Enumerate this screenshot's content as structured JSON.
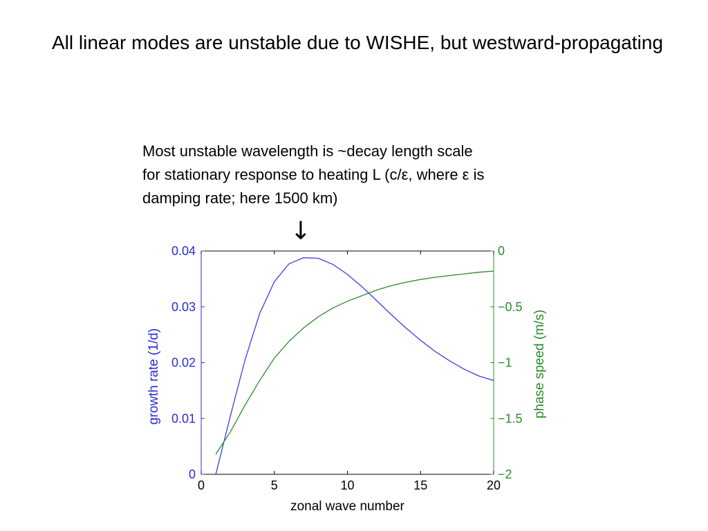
{
  "slide": {
    "title": "All linear modes are unstable due to WISHE, but westward-propagating",
    "annotation_lines": [
      "Most unstable wavelength is ~decay length scale",
      "for stationary response to heating L (c/ε, where ε is",
      "damping rate;  here 1500 km)"
    ],
    "arrow_glyph": "↓"
  },
  "chart_data": {
    "type": "line",
    "title": "",
    "xlabel": "zonal wave number",
    "ylabel": "growth rate (1/d)",
    "ylabel_right": "phase speed (m/s)",
    "xlim": [
      0,
      20
    ],
    "ylim": [
      0,
      0.04
    ],
    "ylim_right": [
      -2,
      0
    ],
    "x_ticks": [
      "0",
      "5",
      "10",
      "15",
      "20"
    ],
    "y_ticks_left": [
      "0",
      "0.01",
      "0.02",
      "0.03",
      "0.04"
    ],
    "y_ticks_right": [
      "−2",
      "−1.5",
      "−1",
      "−0.5",
      "0"
    ],
    "grid": false,
    "colors": {
      "growth_rate": "#3b3be0",
      "phase_speed": "#2a8a2a",
      "left_axis": "#2b2bd6",
      "right_axis": "#2a8a2a"
    },
    "x": [
      1,
      2,
      3,
      4,
      5,
      6,
      7,
      8,
      9,
      10,
      11,
      12,
      13,
      14,
      15,
      16,
      17,
      18,
      19,
      20
    ],
    "series": [
      {
        "axis": "left",
        "values": [
          0,
          0.0105,
          0.0205,
          0.0288,
          0.0345,
          0.0377,
          0.0388,
          0.0387,
          0.0376,
          0.0358,
          0.0336,
          0.0311,
          0.0286,
          0.0262,
          0.024,
          0.022,
          0.0203,
          0.0188,
          0.0176,
          0.0168
        ]
      },
      {
        "axis": "right",
        "values": [
          -1.82,
          -1.62,
          -1.38,
          -1.16,
          -0.96,
          -0.81,
          -0.69,
          -0.59,
          -0.51,
          -0.45,
          -0.4,
          -0.35,
          -0.31,
          -0.28,
          -0.255,
          -0.235,
          -0.22,
          -0.205,
          -0.19,
          -0.18
        ]
      }
    ]
  }
}
